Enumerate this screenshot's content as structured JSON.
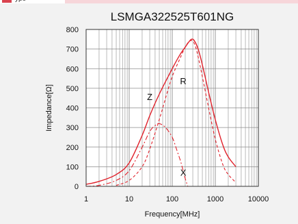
{
  "header": {
    "partial_text": "ypo"
  },
  "colors": {
    "curve": "#e0202a",
    "grid": "#8c8c8c",
    "background": "#f2f2f2",
    "plot_background": "#ffffff",
    "accent_strip": "#f7d6da"
  },
  "chart_data": {
    "type": "line",
    "title": "LSMGA322525T601NG",
    "xlabel": "Frequency[MHz]",
    "ylabel": "Impedance[Ω]",
    "xscale": "log",
    "xlim": [
      1,
      10000
    ],
    "ylim": [
      0,
      800
    ],
    "xticks": [
      "1",
      "10",
      "100",
      "1000",
      "10000"
    ],
    "yticks": [
      "0",
      "100",
      "200",
      "300",
      "400",
      "500",
      "600",
      "700",
      "800"
    ],
    "grid": true,
    "annotations": [
      {
        "text": "Z",
        "x": 30,
        "y": 440
      },
      {
        "text": "R",
        "x": 180,
        "y": 520
      },
      {
        "text": "X",
        "x": 180,
        "y": 55
      }
    ],
    "series": [
      {
        "name": "Z",
        "style": "solid",
        "x": [
          1,
          2,
          5,
          10,
          20,
          30,
          50,
          100,
          150,
          200,
          250,
          280,
          320,
          400,
          500,
          700,
          1000,
          1500,
          2000,
          3000
        ],
        "y": [
          10,
          25,
          60,
          120,
          260,
          360,
          470,
          600,
          670,
          710,
          740,
          750,
          745,
          700,
          620,
          480,
          340,
          210,
          150,
          100
        ]
      },
      {
        "name": "R",
        "style": "dashed",
        "x": [
          5,
          10,
          20,
          30,
          50,
          70,
          100,
          150,
          200,
          250,
          300,
          350,
          400,
          500,
          700,
          1000,
          1500,
          2000,
          3000
        ],
        "y": [
          5,
          30,
          100,
          190,
          340,
          450,
          560,
          650,
          710,
          740,
          740,
          710,
          660,
          560,
          400,
          240,
          110,
          60,
          20
        ]
      },
      {
        "name": "X",
        "style": "dash-dot",
        "x": [
          1,
          2,
          5,
          10,
          20,
          30,
          40,
          50,
          70,
          100,
          130,
          160,
          200,
          230
        ],
        "y": [
          0,
          5,
          30,
          80,
          200,
          280,
          310,
          320,
          300,
          250,
          180,
          120,
          40,
          0
        ]
      }
    ]
  }
}
